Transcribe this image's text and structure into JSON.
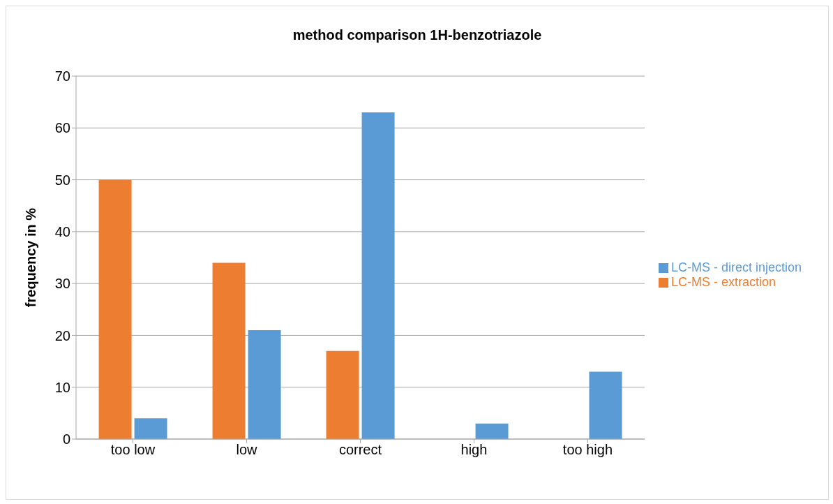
{
  "chart_data": {
    "type": "bar",
    "title": "method comparison 1H-benzotriazole",
    "ylabel": "frequency in %",
    "categories": [
      "too low",
      "low",
      "correct",
      "high",
      "too high"
    ],
    "series": [
      {
        "name": "LC-MS - extraction",
        "color": "#ed7d31",
        "values": [
          50,
          34,
          17,
          0,
          0
        ]
      },
      {
        "name": "LC-MS - direct injection",
        "color": "#5b9bd5",
        "values": [
          4,
          21,
          63,
          3,
          13
        ]
      }
    ],
    "ylim": [
      0,
      70
    ],
    "yticks": [
      0,
      10,
      20,
      30,
      40,
      50,
      60,
      70
    ],
    "grid": "y",
    "legend": "right"
  }
}
